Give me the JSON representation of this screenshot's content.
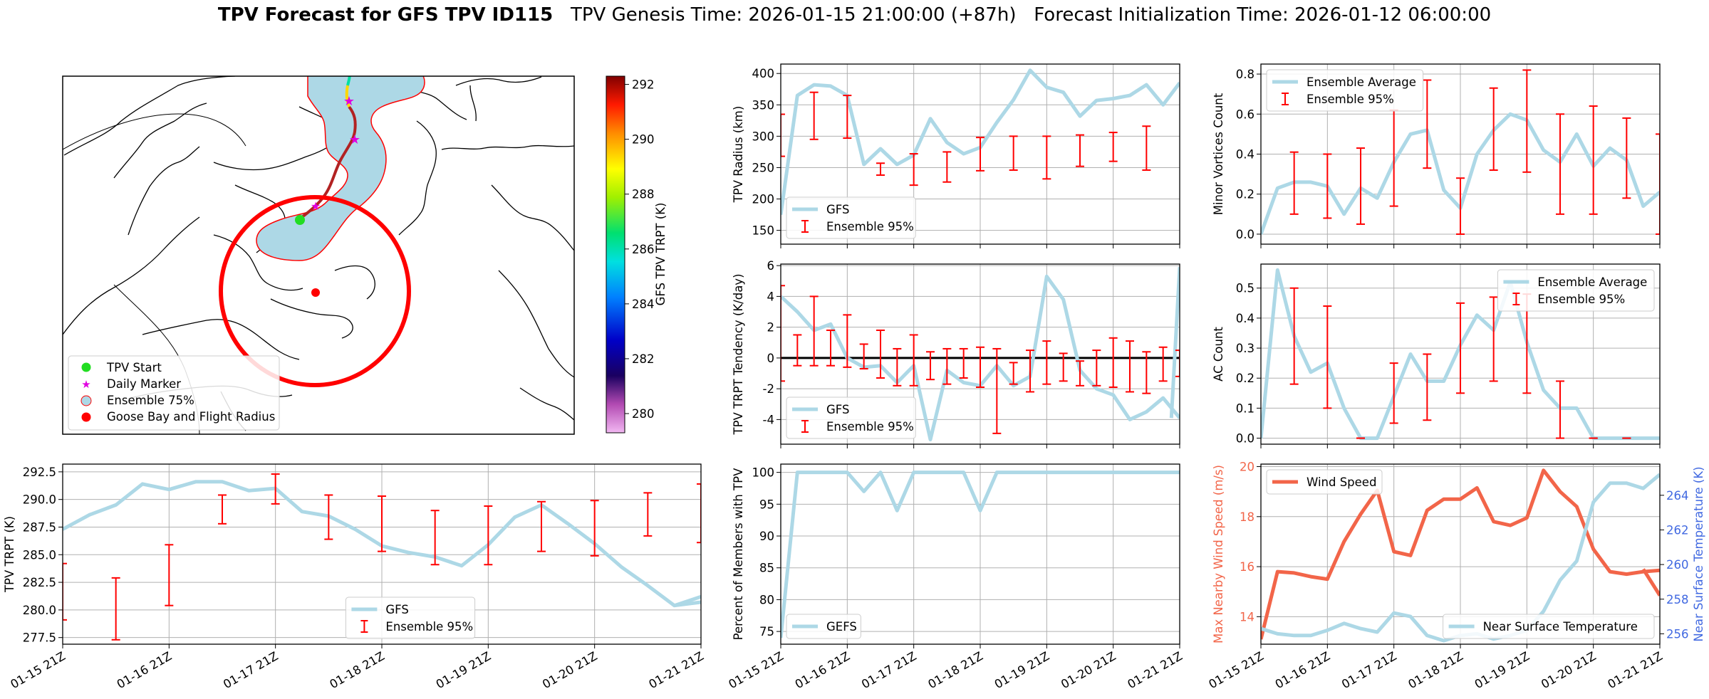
{
  "title": {
    "main": "TPV Forecast for GFS TPV ID115",
    "genesis": "TPV Genesis Time: 2026-01-15 21:00:00 (+87h)",
    "init": "Forecast Initialization Time: 2026-01-12 06:00:00"
  },
  "colors": {
    "gfs_line": "#add8e6",
    "ensemble_bar": "#ff0000",
    "wind_line": "#f26549",
    "temp_axis": "#4169e1",
    "zero_line": "#000000"
  },
  "map_panel": {
    "colorbar": {
      "label": "GFS TPV TRPT (K)",
      "ticks": [
        "292",
        "290",
        "288",
        "286",
        "284",
        "282",
        "280"
      ],
      "range": [
        279.3,
        292.3
      ]
    },
    "legend": [
      {
        "label": "TPV Start",
        "marker": "green-dot"
      },
      {
        "label": "Daily Marker",
        "marker": "magenta-star"
      },
      {
        "label": "Ensemble 75%",
        "marker": "lightblue-circle"
      },
      {
        "label": "Goose Bay and Flight Radius",
        "marker": "red-dot"
      }
    ]
  },
  "x_ticks": [
    "01-15 21Z",
    "01-16 21Z",
    "01-17 21Z",
    "01-18 21Z",
    "01-19 21Z",
    "01-20 21Z",
    "01-21 21Z"
  ],
  "chart_data": [
    {
      "id": "radius",
      "type": "line",
      "title": "",
      "xlabel": "",
      "ylabel": "TPV Radius (km)",
      "xlim": [
        0,
        48
      ],
      "ylim": [
        128,
        415
      ],
      "yticks": [
        150,
        200,
        250,
        300,
        350,
        400
      ],
      "legend": [
        "GFS",
        "Ensemble 95%"
      ],
      "legend_pos": "lower-left",
      "series": [
        {
          "name": "GFS",
          "x": [
            0,
            2,
            4,
            6,
            8,
            10,
            12,
            14,
            16,
            18,
            20,
            22,
            24,
            26,
            28,
            30,
            32,
            34,
            36,
            38,
            40,
            42,
            44,
            46,
            48
          ],
          "values": [
            175,
            365,
            382,
            380,
            365,
            255,
            280,
            255,
            270,
            328,
            290,
            272,
            282,
            322,
            358,
            405,
            378,
            370,
            332,
            357,
            360,
            365,
            382,
            350,
            385
          ]
        }
      ],
      "error_bars": {
        "name": "Ensemble 95%",
        "x": [
          0,
          4,
          8,
          12,
          16,
          20,
          24,
          28,
          32,
          36,
          40,
          44
        ],
        "low": [
          268,
          295,
          297,
          238,
          222,
          227,
          245,
          246,
          232,
          252,
          260,
          246
        ],
        "high": [
          335,
          370,
          365,
          257,
          272,
          275,
          298,
          300,
          300,
          302,
          306,
          316
        ]
      }
    },
    {
      "id": "minor",
      "type": "line",
      "title": "",
      "xlabel": "",
      "ylabel": "Minor Vortices Count",
      "xlim": [
        0,
        48
      ],
      "ylim": [
        -0.05,
        0.85
      ],
      "yticks": [
        0.0,
        0.2,
        0.4,
        0.6,
        0.8
      ],
      "legend": [
        "Ensemble Average",
        "Ensemble 95%"
      ],
      "legend_pos": "upper-left",
      "series": [
        {
          "name": "Ensemble Average",
          "x": [
            0,
            2,
            4,
            6,
            8,
            10,
            12,
            14,
            16,
            18,
            20,
            22,
            24,
            26,
            28,
            30,
            32,
            34,
            36,
            38,
            40,
            42,
            44,
            46,
            48
          ],
          "values": [
            0.0,
            0.23,
            0.26,
            0.26,
            0.24,
            0.1,
            0.23,
            0.18,
            0.36,
            0.5,
            0.52,
            0.22,
            0.13,
            0.4,
            0.52,
            0.6,
            0.57,
            0.42,
            0.36,
            0.5,
            0.34,
            0.43,
            0.37,
            0.14,
            0.21
          ]
        }
      ],
      "error_bars": {
        "name": "Ensemble 95%",
        "x": [
          4,
          8,
          12,
          16,
          20,
          24,
          28,
          32,
          36,
          40,
          44,
          48
        ],
        "low": [
          0.1,
          0.08,
          0.05,
          0.14,
          0.33,
          0.0,
          0.32,
          0.31,
          0.1,
          0.1,
          0.18,
          0.0
        ],
        "high": [
          0.41,
          0.4,
          0.43,
          0.62,
          0.77,
          0.28,
          0.73,
          0.82,
          0.6,
          0.64,
          0.58,
          0.5
        ]
      }
    },
    {
      "id": "tendency",
      "type": "line",
      "title": "",
      "xlabel": "",
      "ylabel": "TPV TRPT Tendency (K/day)",
      "xlim": [
        0,
        48
      ],
      "ylim": [
        -5.6,
        6.1
      ],
      "yticks": [
        -4,
        -2,
        0,
        2,
        4,
        6
      ],
      "zero_line": 0,
      "legend": [
        "GFS",
        "Ensemble 95%"
      ],
      "legend_pos": "lower-left",
      "series": [
        {
          "name": "GFS",
          "x": [
            0,
            2,
            4,
            6,
            8,
            10,
            12,
            14,
            16,
            18,
            20,
            22,
            24,
            26,
            28,
            30,
            32,
            34,
            36,
            38,
            40,
            42,
            44,
            46,
            48
          ],
          "values": [
            4.0,
            3.0,
            1.8,
            2.2,
            0.0,
            -0.6,
            -0.5,
            -1.6,
            -0.5,
            -5.3,
            -0.8,
            -1.6,
            -1.8,
            -0.5,
            -1.8,
            -1.2,
            5.3,
            3.8,
            -0.8,
            -2.0,
            -2.4,
            -4.0,
            -3.5,
            -2.6,
            -3.9
          ]
        },
        {
          "name": "GFS tail",
          "x": [
            47,
            48
          ],
          "values": [
            -3.9,
            5.9
          ]
        }
      ],
      "error_bars": {
        "name": "Ensemble 95%",
        "x": [
          0,
          2,
          4,
          6,
          8,
          10,
          12,
          14,
          16,
          18,
          20,
          22,
          24,
          26,
          28,
          30,
          32,
          34,
          36,
          38,
          40,
          42,
          44,
          46,
          48
        ],
        "low": [
          -1.5,
          -0.5,
          -0.5,
          -0.5,
          -0.6,
          -0.7,
          -1.3,
          -1.8,
          -1.8,
          -1.4,
          -1.7,
          -1.3,
          -1.9,
          -4.9,
          -1.7,
          -2.2,
          -1.7,
          -1.5,
          -1.8,
          -1.8,
          -1.9,
          -2.2,
          -2.3,
          -1.5,
          -1.2
        ],
        "high": [
          4.7,
          1.5,
          4.0,
          1.8,
          2.8,
          0.9,
          1.8,
          0.6,
          1.5,
          0.4,
          0.6,
          0.6,
          0.7,
          0.6,
          -0.3,
          0.5,
          1.1,
          0.3,
          -0.2,
          0.5,
          1.3,
          1.1,
          0.4,
          0.7,
          0.5
        ]
      }
    },
    {
      "id": "ac",
      "type": "line",
      "title": "",
      "xlabel": "",
      "ylabel": "AC Count",
      "xlim": [
        0,
        48
      ],
      "ylim": [
        -0.02,
        0.58
      ],
      "yticks": [
        0.0,
        0.1,
        0.2,
        0.3,
        0.4,
        0.5
      ],
      "legend": [
        "Ensemble Average",
        "Ensemble 95%"
      ],
      "legend_pos": "upper-right",
      "series": [
        {
          "name": "Ensemble Average",
          "x": [
            0,
            2,
            4,
            6,
            8,
            10,
            12,
            14,
            16,
            18,
            20,
            22,
            24,
            26,
            28,
            30,
            32,
            34,
            36,
            38,
            40,
            42,
            44,
            46,
            48
          ],
          "values": [
            0.0,
            0.56,
            0.34,
            0.22,
            0.25,
            0.1,
            0.0,
            0.0,
            0.14,
            0.28,
            0.19,
            0.19,
            0.31,
            0.41,
            0.36,
            0.52,
            0.32,
            0.16,
            0.1,
            0.1,
            0.0,
            0.0,
            0.0,
            0.0,
            0.0
          ]
        }
      ],
      "error_bars": {
        "name": "Ensemble 95%",
        "x": [
          4,
          8,
          12,
          16,
          20,
          24,
          28,
          32,
          36,
          40,
          44
        ],
        "low": [
          0.18,
          0.1,
          0.0,
          0.05,
          0.06,
          0.15,
          0.19,
          0.15,
          0.0,
          0.0,
          0.0
        ],
        "high": [
          0.5,
          0.44,
          0.0,
          0.25,
          0.28,
          0.45,
          0.47,
          0.48,
          0.19,
          0.0,
          0.0
        ]
      }
    },
    {
      "id": "trpt",
      "type": "line",
      "title": "",
      "xlabel": "",
      "ylabel": "TPV TRPT (K)",
      "xlim": [
        0,
        48
      ],
      "ylim": [
        276.9,
        293.2
      ],
      "yticks": [
        277.5,
        280.0,
        282.5,
        285.0,
        287.5,
        290.0,
        292.5
      ],
      "legend": [
        "GFS",
        "Ensemble 95%"
      ],
      "legend_pos": "lower-center",
      "series": [
        {
          "name": "GFS",
          "x": [
            0,
            2,
            4,
            6,
            8,
            10,
            12,
            14,
            16,
            18,
            20,
            22,
            24,
            26,
            28,
            30,
            32,
            34,
            36,
            38,
            40,
            42,
            44,
            46,
            48
          ],
          "values": [
            287.3,
            288.6,
            289.5,
            291.4,
            290.9,
            291.6,
            291.6,
            290.8,
            291.0,
            288.9,
            288.5,
            287.3,
            285.8,
            285.2,
            284.8,
            284.0,
            285.9,
            288.4,
            289.5,
            287.8,
            286.0,
            283.9,
            282.2,
            280.4,
            280.7
          ]
        },
        {
          "name": "GFS tail",
          "x": [
            46,
            48
          ],
          "values": [
            280.4,
            281.2
          ]
        }
      ],
      "error_bars": {
        "name": "Ensemble 95%",
        "x": [
          0,
          4,
          8,
          12,
          16,
          20,
          24,
          28,
          32,
          36,
          40,
          44,
          48
        ],
        "low": [
          279.1,
          277.3,
          280.4,
          287.8,
          289.6,
          286.4,
          285.3,
          284.1,
          284.1,
          285.3,
          284.9,
          286.7,
          286.1
        ],
        "high": [
          284.2,
          282.9,
          285.9,
          290.4,
          292.3,
          290.4,
          290.3,
          289.0,
          289.4,
          289.8,
          289.9,
          290.6,
          291.4
        ]
      }
    },
    {
      "id": "members",
      "type": "line",
      "title": "",
      "xlabel": "",
      "ylabel": "Percent of Members with TPV",
      "xlim": [
        0,
        48
      ],
      "ylim": [
        73,
        101.3
      ],
      "yticks": [
        75,
        80,
        85,
        90,
        95,
        100
      ],
      "legend": [
        "GEFS"
      ],
      "legend_pos": "lower-left",
      "series": [
        {
          "name": "GEFS",
          "x": [
            0,
            2,
            4,
            6,
            8,
            10,
            12,
            14,
            16,
            18,
            20,
            22,
            24,
            26,
            28,
            30,
            32,
            34,
            36,
            38,
            40,
            42,
            44,
            46,
            48
          ],
          "values": [
            74,
            100,
            100,
            100,
            100,
            97,
            100,
            94,
            100,
            100,
            100,
            100,
            94,
            100,
            100,
            100,
            100,
            100,
            100,
            100,
            100,
            100,
            100,
            100,
            100
          ]
        }
      ]
    },
    {
      "id": "wind_temp",
      "type": "line",
      "title": "",
      "xlabel": "",
      "ylabel": "Max Nearby Wind Speed (m/s)",
      "ylabel_right": "Near Surface Temperature (K)",
      "xlim": [
        0,
        48
      ],
      "ylim": [
        12.9,
        20.1
      ],
      "ylim_right": [
        255.4,
        265.8
      ],
      "yticks": [
        14,
        16,
        18,
        20
      ],
      "yticks_right": [
        256,
        258,
        260,
        262,
        264
      ],
      "legend": [
        "Wind Speed",
        "Near Surface Temperature"
      ],
      "series": [
        {
          "name": "Wind Speed",
          "axis": "left",
          "x": [
            0,
            2,
            4,
            6,
            8,
            10,
            12,
            14,
            16,
            18,
            20,
            22,
            24,
            26,
            28,
            30,
            32,
            34,
            36,
            38,
            40,
            42,
            44,
            46,
            48
          ],
          "values": [
            13.1,
            15.8,
            15.75,
            15.6,
            15.5,
            17.0,
            18.1,
            19.05,
            16.6,
            16.45,
            18.25,
            18.7,
            18.7,
            19.15,
            17.8,
            17.65,
            17.95,
            19.85,
            19.0,
            18.4,
            16.7,
            15.8,
            15.7,
            15.8,
            15.85
          ]
        },
        {
          "name": "Wind Speed tail",
          "axis": "left",
          "x": [
            46,
            48
          ],
          "values": [
            15.9,
            14.85
          ]
        },
        {
          "name": "Near Surface Temperature",
          "axis": "right",
          "x": [
            0,
            2,
            4,
            6,
            8,
            10,
            12,
            14,
            16,
            18,
            20,
            22,
            24,
            26,
            28,
            30,
            32,
            34,
            36,
            38,
            40,
            42,
            44,
            46,
            48
          ],
          "values": [
            256.3,
            256.0,
            255.9,
            255.9,
            256.2,
            256.6,
            256.3,
            256.1,
            257.2,
            257.0,
            255.9,
            255.6,
            255.9,
            256.0,
            255.7,
            255.9,
            256.2,
            257.3,
            259.1,
            260.2,
            263.6,
            264.7,
            264.7,
            264.4,
            265.2
          ]
        }
      ]
    }
  ]
}
